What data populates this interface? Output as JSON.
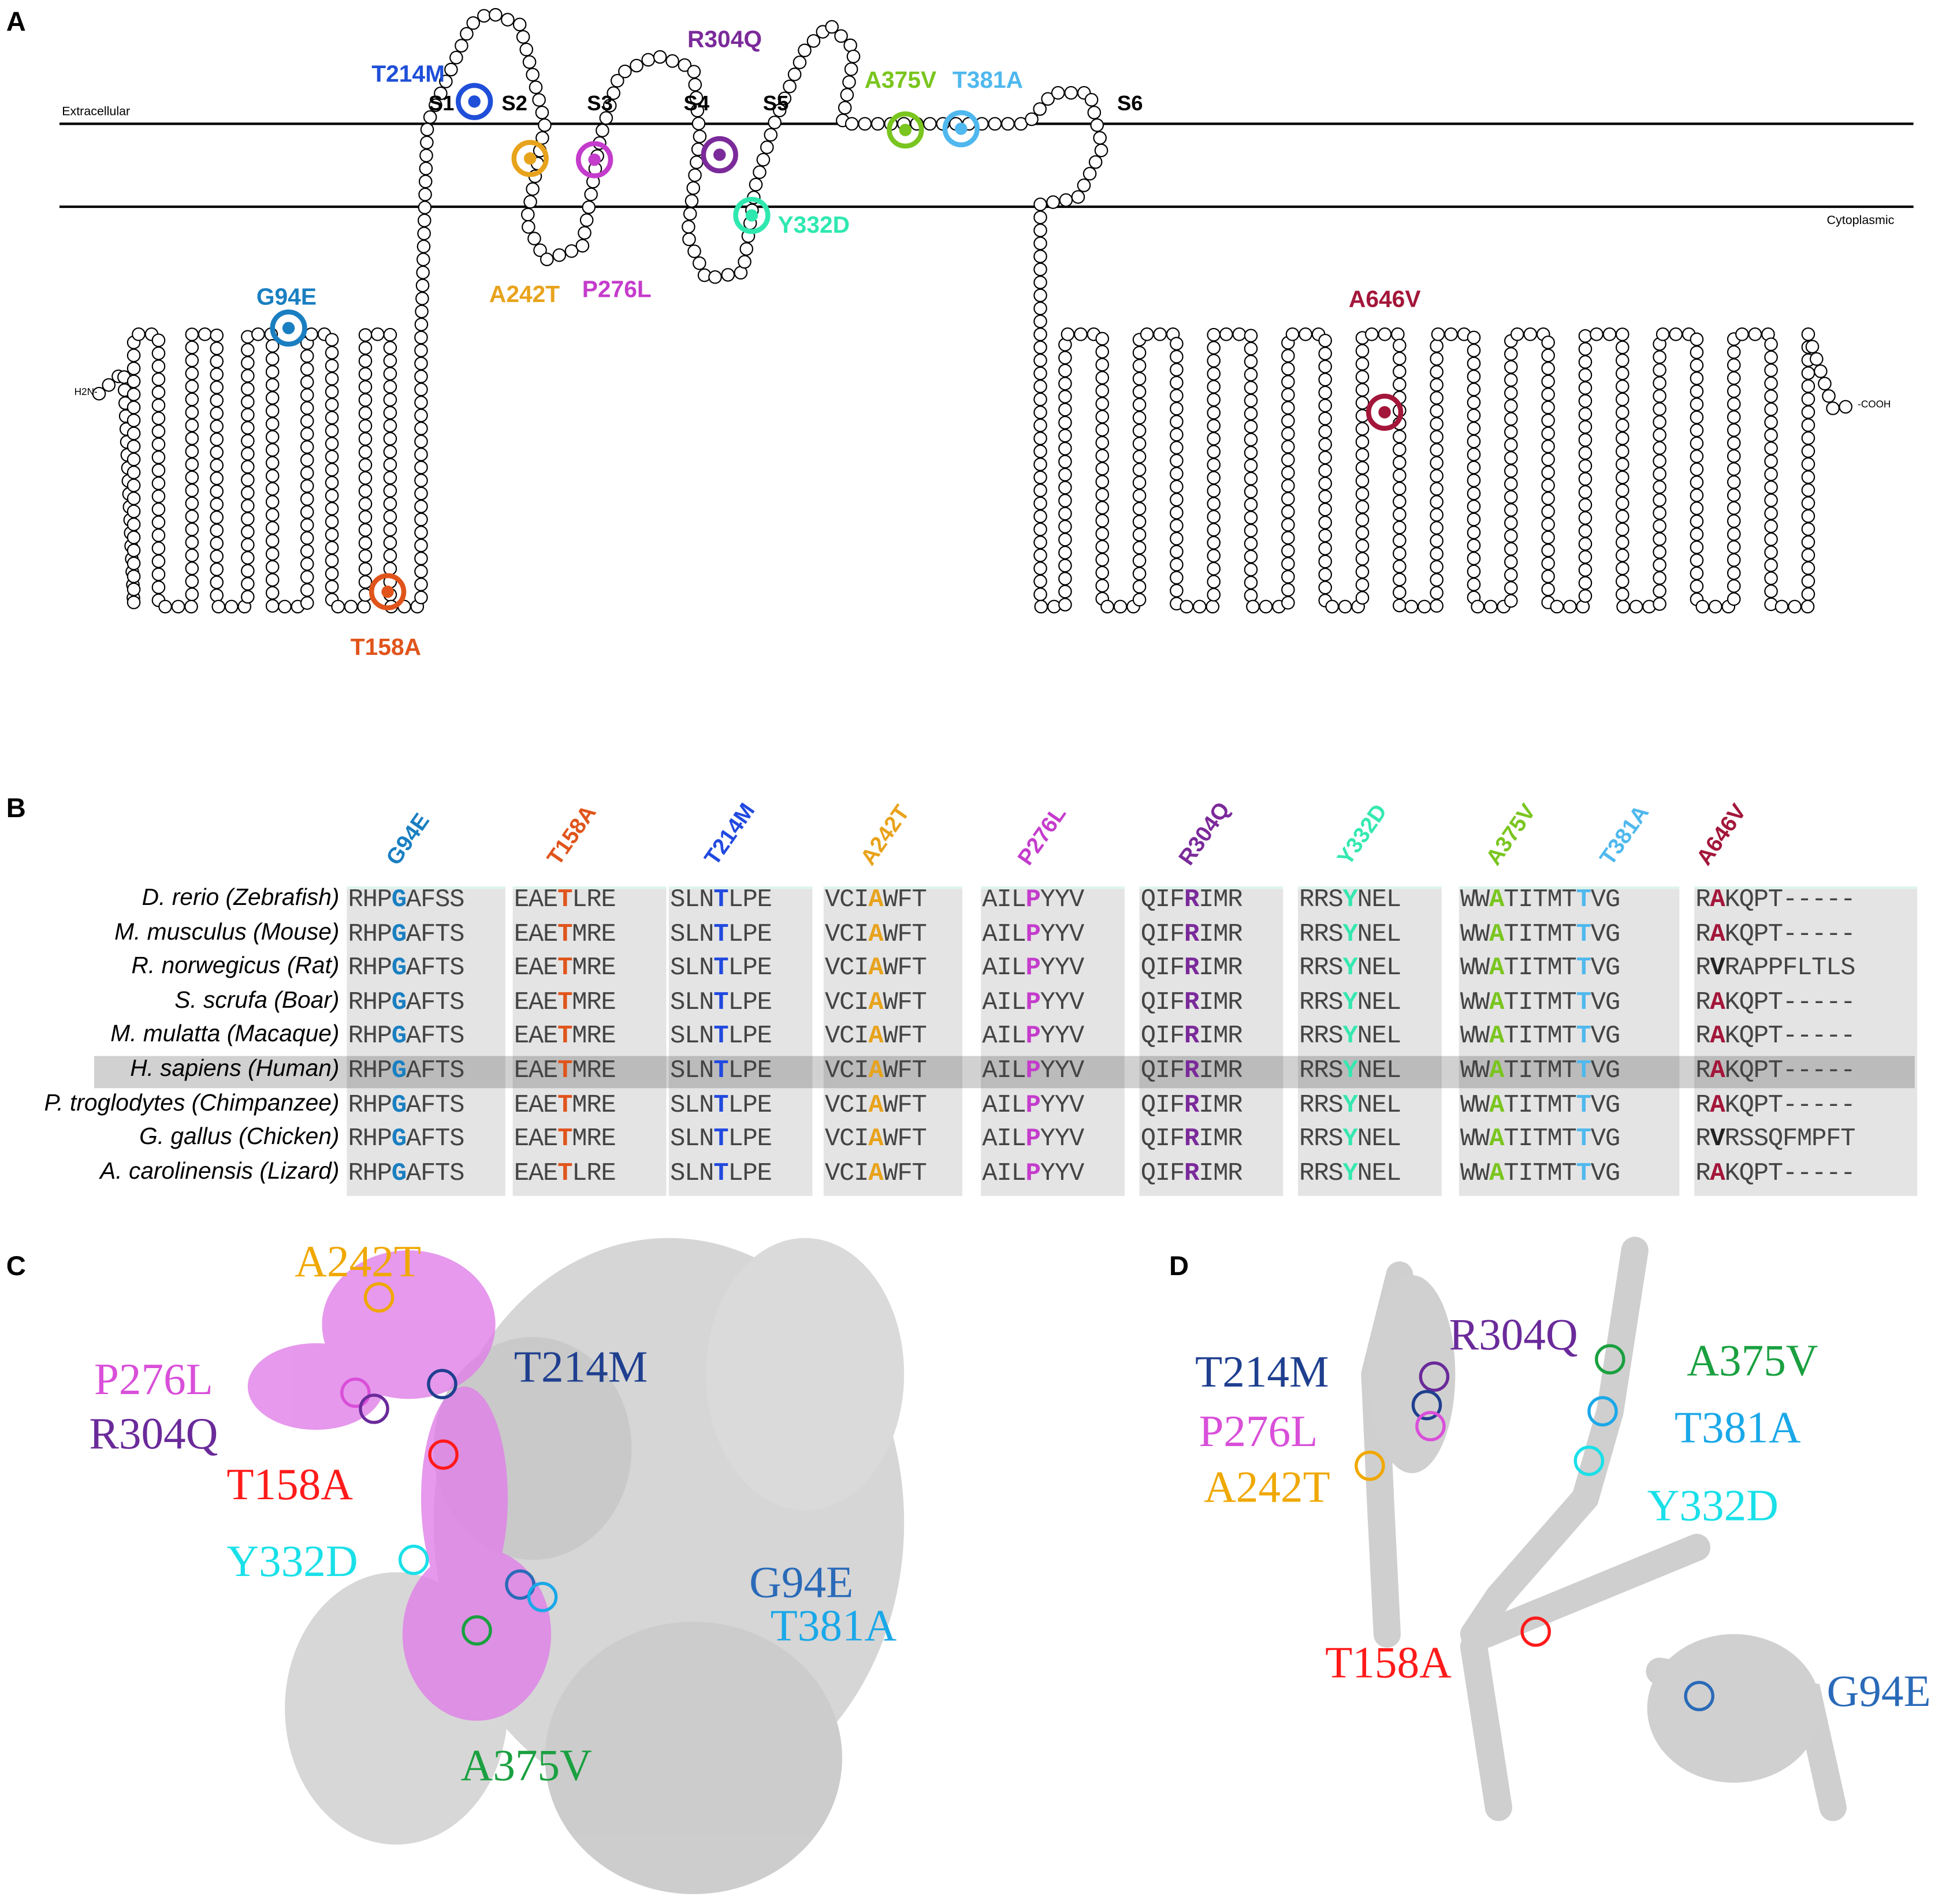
{
  "panels": {
    "a": "A",
    "b": "B",
    "c": "C",
    "d": "D"
  },
  "panel_a": {
    "extracellular": "Extracellular",
    "cytoplasmic": "Cytoplasmic",
    "n_term": "H2N-",
    "c_term": "-COOH",
    "segments": [
      "S1",
      "S2",
      "S3",
      "S4",
      "S5",
      "S6"
    ],
    "mutations": [
      {
        "label": "T214M",
        "color": "#1f4fd8"
      },
      {
        "label": "R304Q",
        "color": "#7b2a9a"
      },
      {
        "label": "A375V",
        "color": "#7ac51f"
      },
      {
        "label": "T381A",
        "color": "#4fb8ee"
      },
      {
        "label": "Y332D",
        "color": "#2fe8b0"
      },
      {
        "label": "A242T",
        "color": "#e8a31c"
      },
      {
        "label": "P276L",
        "color": "#c43ccc"
      },
      {
        "label": "G94E",
        "color": "#1a7fc1"
      },
      {
        "label": "T158A",
        "color": "#e0541b"
      },
      {
        "label": "A646V",
        "color": "#a3163a"
      }
    ]
  },
  "panel_b": {
    "columns": [
      {
        "label": "G94E",
        "color": "#1a7fc1"
      },
      {
        "label": "T158A",
        "color": "#e0541b"
      },
      {
        "label": "T214M",
        "color": "#2149e0"
      },
      {
        "label": "A242T",
        "color": "#e8a31c"
      },
      {
        "label": "P276L",
        "color": "#c43ccc"
      },
      {
        "label": "R304Q",
        "color": "#7b2a9a"
      },
      {
        "label": "Y332D",
        "color": "#35e8b0"
      },
      {
        "label": "A375V",
        "color": "#7ac51f"
      },
      {
        "label": "T381A",
        "color": "#4fb8ee"
      },
      {
        "label": "A646V",
        "color": "#a3163a"
      }
    ],
    "highlighted_species": "H. sapiens (Human)",
    "rows": [
      {
        "species": "D. rerio (Zebrafish)",
        "blocks": [
          "RHPGAFSS",
          "EAETLRE",
          "SLNTLPE",
          "VCIAWFT",
          "AILPYYV",
          "QIFRIMR",
          "RRSYNEL",
          "WWATITMTTVG",
          "RAKQPT-----"
        ]
      },
      {
        "species": "M. musculus (Mouse)",
        "blocks": [
          "RHPGAFTS",
          "EAETMRE",
          "SLNTLPE",
          "VCIAWFT",
          "AILPYYV",
          "QIFRIMR",
          "RRSYNEL",
          "WWATITMTTVG",
          "RAKQPT-----"
        ]
      },
      {
        "species": "R. norwegicus (Rat)",
        "blocks": [
          "RHPGAFTS",
          "EAETMRE",
          "SLNTLPE",
          "VCIAWFT",
          "AILPYYV",
          "QIFRIMR",
          "RRSYNEL",
          "WWATITMTTVG",
          "RVRAPPFLTLS"
        ]
      },
      {
        "species": "S. scrufa (Boar)",
        "blocks": [
          "RHPGAFTS",
          "EAETMRE",
          "SLNTLPE",
          "VCIAWFT",
          "AILPYYV",
          "QIFRIMR",
          "RRSYNEL",
          "WWATITMTTVG",
          "RAKQPT-----"
        ]
      },
      {
        "species": "M. mulatta (Macaque)",
        "blocks": [
          "RHPGAFTS",
          "EAETMRE",
          "SLNTLPE",
          "VCIAWFT",
          "AILPYYV",
          "QIFRIMR",
          "RRSYNEL",
          "WWATITMTTVG",
          "RAKQPT-----"
        ]
      },
      {
        "species": "H. sapiens (Human)",
        "blocks": [
          "RHPGAFTS",
          "EAETMRE",
          "SLNTLPE",
          "VCIAWFT",
          "AILPYYV",
          "QIFRIMR",
          "RRSYNEL",
          "WWATITMTTVG",
          "RAKQPT-----"
        ]
      },
      {
        "species": "P. troglodytes (Chimpanzee)",
        "blocks": [
          "RHPGAFTS",
          "EAETMRE",
          "SLNTLPE",
          "VCIAWFT",
          "AILPYYV",
          "QIFRIMR",
          "RRSYNEL",
          "WWATITMTTVG",
          "RAKQPT-----"
        ]
      },
      {
        "species": "G. gallus (Chicken)",
        "blocks": [
          "RHPGAFTS",
          "EAETMRE",
          "SLNTLPE",
          "VCIAWFT",
          "AILPYYV",
          "QIFRIMR",
          "RRSYNEL",
          "WWATITMTTVG",
          "RVRSSQFMPFT"
        ]
      },
      {
        "species": "A. carolinensis (Lizard)",
        "blocks": [
          "RHPGAFTS",
          "EAETLRE",
          "SLNTLPE",
          "VCIAWFT",
          "AILPYYV",
          "QIFRIMR",
          "RRSYNEL",
          "WWATITMTTVG",
          "RAKQPT-----"
        ]
      }
    ]
  },
  "panel_c": {
    "labels": [
      {
        "label": "A242T",
        "color": "#f0a800"
      },
      {
        "label": "P276L",
        "color": "#d94fd9"
      },
      {
        "label": "R304Q",
        "color": "#6a2a9a"
      },
      {
        "label": "T158A",
        "color": "#ff1a1a"
      },
      {
        "label": "Y332D",
        "color": "#19e0e8"
      },
      {
        "label": "T214M",
        "color": "#1f3f8f"
      },
      {
        "label": "G94E",
        "color": "#2a6ab8"
      },
      {
        "label": "T381A",
        "color": "#1aa8e8"
      },
      {
        "label": "A375V",
        "color": "#1aa040"
      }
    ]
  },
  "panel_d": {
    "labels": [
      {
        "label": "R304Q",
        "color": "#6a2a9a"
      },
      {
        "label": "A375V",
        "color": "#1aa040"
      },
      {
        "label": "T214M",
        "color": "#1f3f8f"
      },
      {
        "label": "T381A",
        "color": "#1aa8e8"
      },
      {
        "label": "P276L",
        "color": "#d94fd9"
      },
      {
        "label": "A242T",
        "color": "#f0a800"
      },
      {
        "label": "Y332D",
        "color": "#19e0e8"
      },
      {
        "label": "T158A",
        "color": "#ff1a1a"
      },
      {
        "label": "G94E",
        "color": "#2a6ab8"
      }
    ]
  }
}
